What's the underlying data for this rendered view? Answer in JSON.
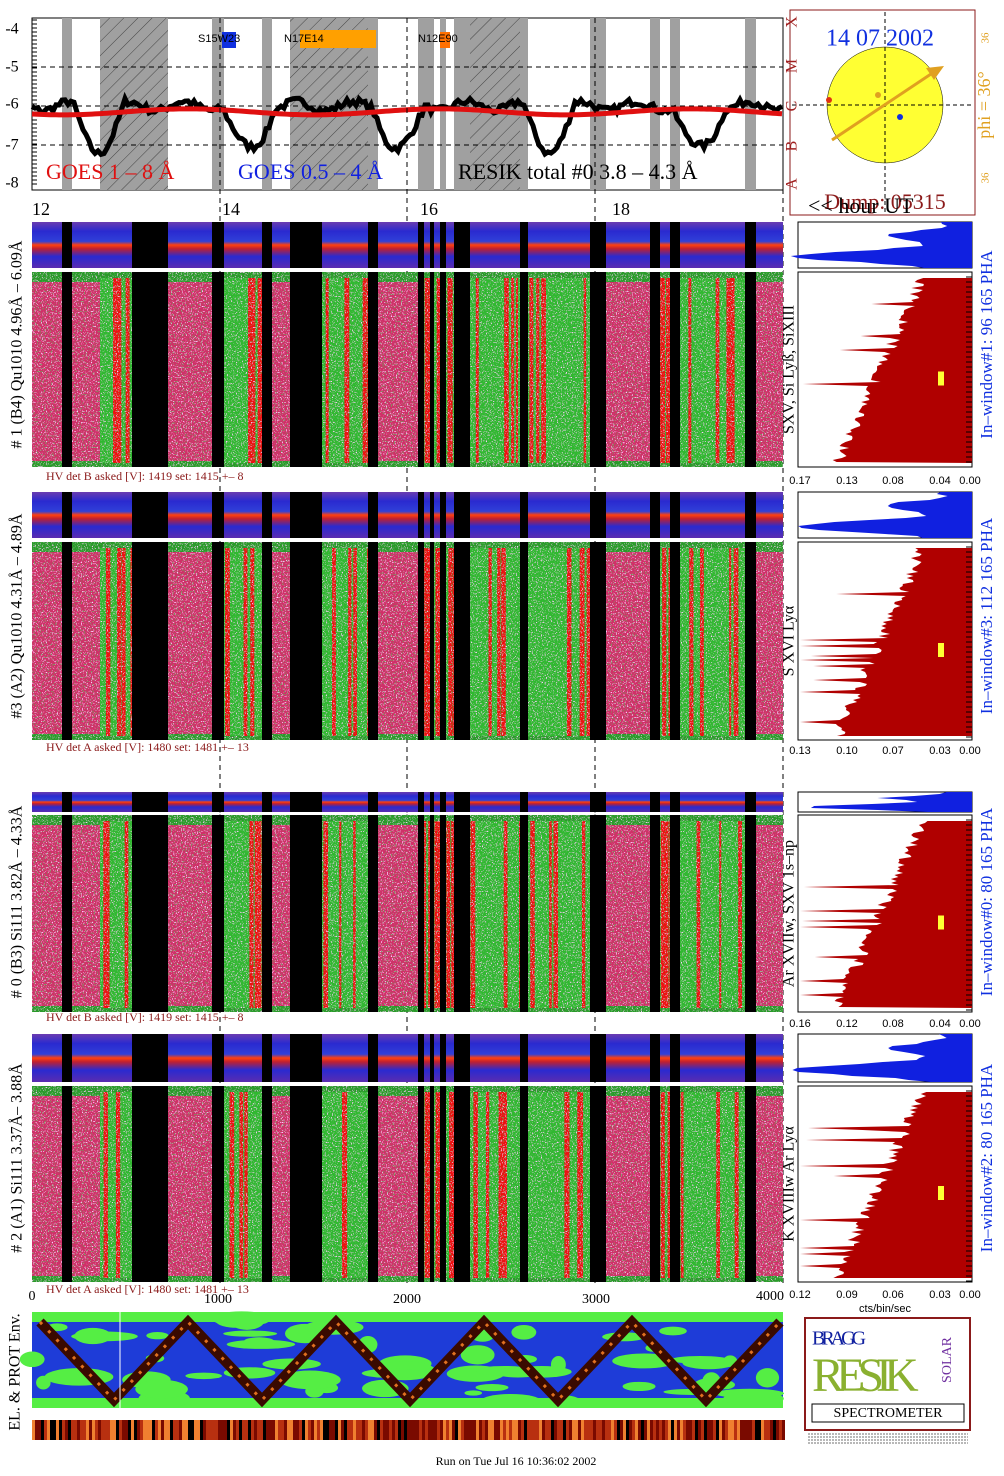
{
  "goes": {
    "yticks": [
      "-4",
      "-5",
      "-6",
      "-7",
      "-8"
    ],
    "classes": [
      "X",
      "M",
      "C",
      "B",
      "A"
    ],
    "legend": [
      "GOES 1 – 8 Å",
      "GOES 0.5 – 4 Å",
      "RESIK total #0  3.8 – 4.3 Å"
    ],
    "regions": [
      "S15W23",
      "N17E14",
      "N12E90"
    ]
  },
  "sun": {
    "date": "14 07 2002",
    "phi": "phi = 36°",
    "small": [
      "36",
      "36"
    ],
    "dump": "Dump: 05315"
  },
  "time_axis": {
    "ticks": [
      "12",
      "14",
      "16",
      "18"
    ],
    "label": "<< hour UT"
  },
  "detectors": [
    {
      "label": "# 1 (B4) Qu1010 4.96Å – 6.09Å",
      "lines": "SXV, Si Lyß, SiXIII",
      "window": "In–window#1:   96 165  PHA",
      "hv": "HV det B asked [V]:  1419 set:  1415  +–   8",
      "xticks": [
        "0.17",
        "0.13",
        "0.08",
        "0.04",
        "0.00"
      ]
    },
    {
      "label": "#3 (A2) Qu1010  4.31Å – 4.89Å",
      "lines": "S XVI Lyα",
      "window": "In–window#3:  112 165  PHA",
      "hv": "HV det A asked [V]:  1480 set:  1481  +–   13",
      "xticks": [
        "0.13",
        "0.10",
        "0.07",
        "0.03",
        "0.00"
      ]
    },
    {
      "label": "# 0 (B3) Si111  3.82Å – 4.33Å",
      "lines": "Ar XVIIw,  SXV 1s–np",
      "window": "In–window#0:   80 165  PHA",
      "hv": "HV det B asked [V]:  1419 set:  1415  +–   8",
      "xticks": [
        "0.16",
        "0.12",
        "0.08",
        "0.04",
        "0.00"
      ]
    },
    {
      "label": "# 2 (A1) Si111  3.37Å– 3.88Å",
      "lines": "K XVIIIw  Ar Lyα",
      "window": "In–window#2:   80 165  PHA",
      "hv": "HV det A asked [V]:  1480 set:  1481  +–   13",
      "xticks": [
        "0.12",
        "0.09",
        "0.06",
        "0.03",
        "0.00"
      ]
    }
  ],
  "channel_axis": {
    "ticks": [
      "0",
      "1000",
      "2000",
      "3000",
      "4000"
    ],
    "unit": "cts/bin/sec"
  },
  "env": {
    "label": "EL. & PROT Env."
  },
  "logo": {
    "bragg": "BRAGG",
    "resik": "RESIK",
    "solar": "SOLAR",
    "spectrometer": "SPECTROMETER"
  },
  "footer": "Run on Tue Jul 16 10:36:02 2002"
}
